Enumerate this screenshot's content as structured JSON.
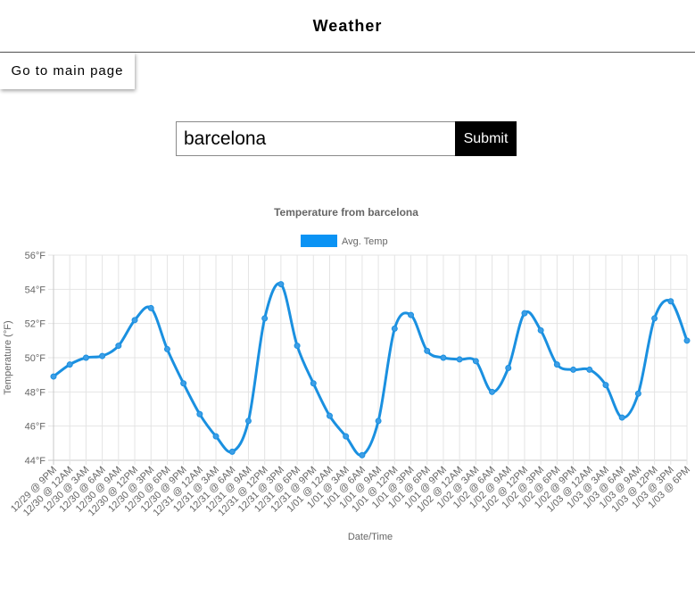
{
  "header": {
    "title": "Weather"
  },
  "nav": {
    "main_page_label": "Go to main page"
  },
  "search": {
    "value": "barcelona",
    "submit_label": "Submit"
  },
  "colors": {
    "series": "#1a90e0",
    "legend_box": "#0b93f4",
    "text": "#666666",
    "grid": "#e2e2e2"
  },
  "chart_data": {
    "type": "line",
    "title": "Temperature from barcelona",
    "xlabel": "Date/Time",
    "ylabel": "Temperature (°F)",
    "ylim": [
      44,
      56
    ],
    "yticks": [
      "44°F",
      "46°F",
      "48°F",
      "50°F",
      "52°F",
      "54°F",
      "56°F"
    ],
    "grid": true,
    "legend_position": "top",
    "categories": [
      "12/29 @ 9PM",
      "12/30 @ 12AM",
      "12/30 @ 3AM",
      "12/30 @ 6AM",
      "12/30 @ 9AM",
      "12/30 @ 12PM",
      "12/30 @ 3PM",
      "12/30 @ 6PM",
      "12/30 @ 9PM",
      "12/31 @ 12AM",
      "12/31 @ 3AM",
      "12/31 @ 6AM",
      "12/31 @ 9AM",
      "12/31 @ 12PM",
      "12/31 @ 3PM",
      "12/31 @ 6PM",
      "12/31 @ 9PM",
      "1/01 @ 12AM",
      "1/01 @ 3AM",
      "1/01 @ 6AM",
      "1/01 @ 9AM",
      "1/01 @ 12PM",
      "1/01 @ 3PM",
      "1/01 @ 6PM",
      "1/01 @ 9PM",
      "1/02 @ 12AM",
      "1/02 @ 3AM",
      "1/02 @ 6AM",
      "1/02 @ 9AM",
      "1/02 @ 12PM",
      "1/02 @ 3PM",
      "1/02 @ 6PM",
      "1/02 @ 9PM",
      "1/03 @ 12AM",
      "1/03 @ 3AM",
      "1/03 @ 6AM",
      "1/03 @ 9AM",
      "1/03 @ 12PM",
      "1/03 @ 3PM",
      "1/03 @ 6PM"
    ],
    "series": [
      {
        "name": "Avg. Temp",
        "values": [
          48.9,
          49.6,
          50.0,
          50.1,
          50.7,
          52.2,
          52.9,
          50.5,
          48.5,
          46.7,
          45.4,
          44.5,
          46.3,
          52.3,
          54.3,
          50.7,
          48.5,
          46.6,
          45.4,
          44.3,
          46.3,
          51.7,
          52.5,
          50.4,
          50.0,
          49.9,
          49.8,
          48.0,
          49.4,
          52.6,
          51.6,
          49.6,
          49.3,
          49.3,
          48.4,
          46.5,
          47.9,
          52.3,
          53.3,
          51.0
        ]
      }
    ]
  }
}
